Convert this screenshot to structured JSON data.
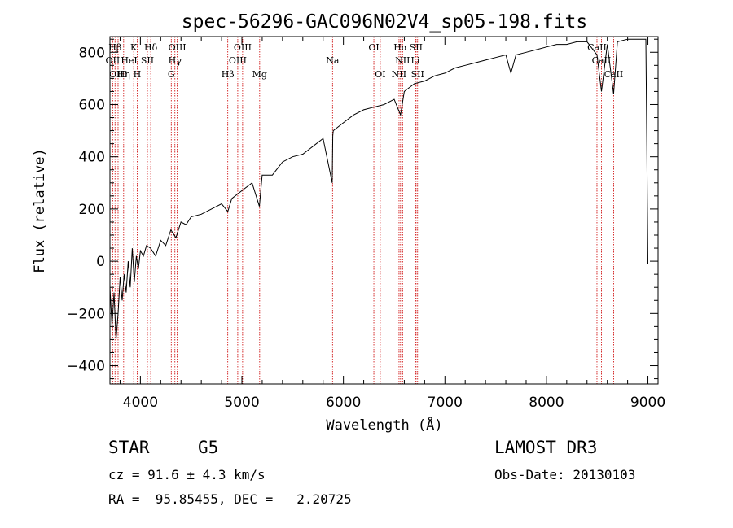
{
  "chart_data": {
    "type": "line",
    "title": "spec-56296-GAC096N02V4_sp05-198.fits",
    "xlabel": "Wavelength (Å)",
    "ylabel": "Flux (relative)",
    "xlim": [
      3700,
      9100
    ],
    "ylim": [
      -470,
      860
    ],
    "x_ticks": [
      4000,
      5000,
      6000,
      7000,
      8000,
      9000
    ],
    "y_ticks": [
      -400,
      -200,
      0,
      200,
      400,
      600,
      800
    ],
    "series": [
      {
        "name": "spectrum",
        "x": [
          3700,
          3720,
          3740,
          3760,
          3780,
          3800,
          3820,
          3840,
          3860,
          3880,
          3900,
          3920,
          3940,
          3960,
          3980,
          4000,
          4030,
          4060,
          4100,
          4150,
          4200,
          4250,
          4300,
          4350,
          4400,
          4450,
          4500,
          4600,
          4700,
          4800,
          4861,
          4900,
          5000,
          5100,
          5172,
          5200,
          5300,
          5400,
          5500,
          5600,
          5700,
          5800,
          5890,
          5895,
          5900,
          6000,
          6100,
          6200,
          6300,
          6400,
          6500,
          6563,
          6600,
          6700,
          6800,
          6900,
          7000,
          7100,
          7200,
          7300,
          7400,
          7500,
          7600,
          7650,
          7700,
          7800,
          7900,
          8000,
          8100,
          8200,
          8300,
          8400,
          8498,
          8542,
          8600,
          8662,
          8700,
          8800,
          8900,
          8980,
          9000
        ],
        "values": [
          -100,
          -250,
          -120,
          -300,
          -200,
          -60,
          -150,
          -50,
          -120,
          0,
          -100,
          50,
          -80,
          20,
          -30,
          40,
          20,
          60,
          50,
          20,
          80,
          60,
          120,
          90,
          150,
          140,
          170,
          180,
          200,
          220,
          190,
          240,
          270,
          300,
          210,
          330,
          330,
          380,
          400,
          410,
          440,
          470,
          300,
          480,
          500,
          530,
          560,
          580,
          590,
          600,
          620,
          560,
          650,
          680,
          690,
          710,
          720,
          740,
          750,
          760,
          770,
          780,
          790,
          720,
          790,
          800,
          810,
          820,
          830,
          830,
          840,
          840,
          790,
          650,
          830,
          640,
          840,
          850,
          850,
          850,
          -10
        ]
      }
    ],
    "line_markers": [
      {
        "label": "Hβ",
        "wavelength": 3750,
        "row": 1
      },
      {
        "label": "K",
        "wavelength": 3934,
        "row": 1
      },
      {
        "label": "Hδ",
        "wavelength": 4102,
        "row": 1
      },
      {
        "label": "OIII",
        "wavelength": 4363,
        "row": 1
      },
      {
        "label": "OIII",
        "wavelength": 5007,
        "row": 1
      },
      {
        "label": "OI",
        "wavelength": 6300,
        "row": 1
      },
      {
        "label": "Hα",
        "wavelength": 6563,
        "row": 1
      },
      {
        "label": "SII",
        "wavelength": 6716,
        "row": 1
      },
      {
        "label": "CaII",
        "wavelength": 8498,
        "row": 1
      },
      {
        "label": "OII",
        "wavelength": 3727,
        "row": 2
      },
      {
        "label": "HeI",
        "wavelength": 3889,
        "row": 2
      },
      {
        "label": "SII",
        "wavelength": 4069,
        "row": 2
      },
      {
        "label": "Hγ",
        "wavelength": 4340,
        "row": 2
      },
      {
        "label": "OIII",
        "wavelength": 4959,
        "row": 2
      },
      {
        "label": "Na",
        "wavelength": 5893,
        "row": 2
      },
      {
        "label": "NII",
        "wavelength": 6583,
        "row": 2
      },
      {
        "label": "Li",
        "wavelength": 6708,
        "row": 2
      },
      {
        "label": "CaII",
        "wavelength": 8542,
        "row": 2
      },
      {
        "label": "OIII",
        "wavelength": 3780,
        "row": 3
      },
      {
        "label": "Hη",
        "wavelength": 3835,
        "row": 3
      },
      {
        "label": "H",
        "wavelength": 3968,
        "row": 3
      },
      {
        "label": "G",
        "wavelength": 4304,
        "row": 3
      },
      {
        "label": "Hβ",
        "wavelength": 4861,
        "row": 3
      },
      {
        "label": "Mg",
        "wavelength": 5175,
        "row": 3
      },
      {
        "label": "OI",
        "wavelength": 6363,
        "row": 3
      },
      {
        "label": "NII",
        "wavelength": 6548,
        "row": 3
      },
      {
        "label": "SII",
        "wavelength": 6731,
        "row": 3
      },
      {
        "label": "CaII",
        "wavelength": 8662,
        "row": 3
      }
    ]
  },
  "info": {
    "object_class": "STAR",
    "subclass": "G5",
    "survey": "LAMOST DR3",
    "cz": "cz = 91.6 ± 4.3 km/s",
    "obs_date": "Obs-Date: 20130103",
    "coords": "RA =  95.85455, DEC =   2.20725"
  }
}
